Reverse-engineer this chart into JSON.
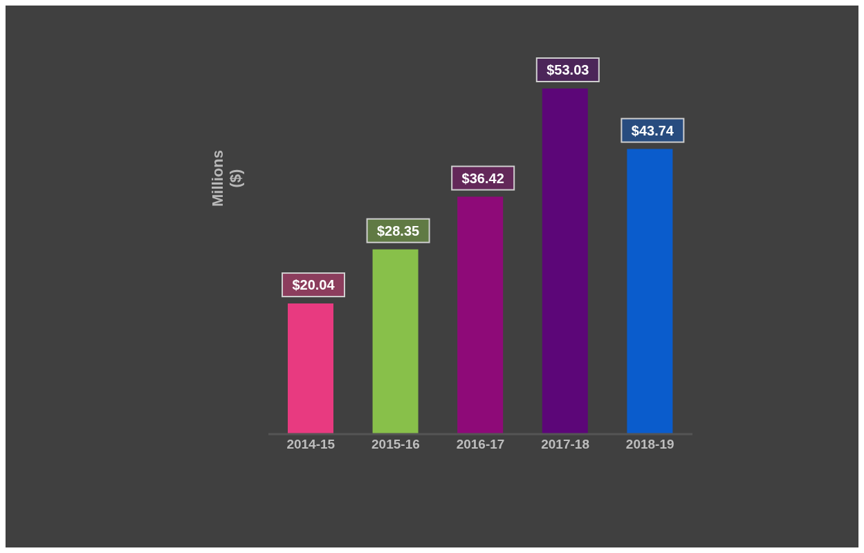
{
  "chart_data": {
    "type": "bar",
    "ylabel": "Millions\n($)",
    "categories": [
      "2014-15",
      "2015-16",
      "2016-17",
      "2017-18",
      "2018-19"
    ],
    "values": [
      20.04,
      28.35,
      36.42,
      53.03,
      43.74
    ],
    "value_labels": [
      "$20.04",
      "$28.35",
      "$36.42",
      "$53.03",
      "$43.74"
    ],
    "colors": [
      "#e83a80",
      "#88c04a",
      "#8e0a78",
      "#5c0678",
      "#0a5ccc"
    ],
    "grid": false,
    "legend": false
  }
}
